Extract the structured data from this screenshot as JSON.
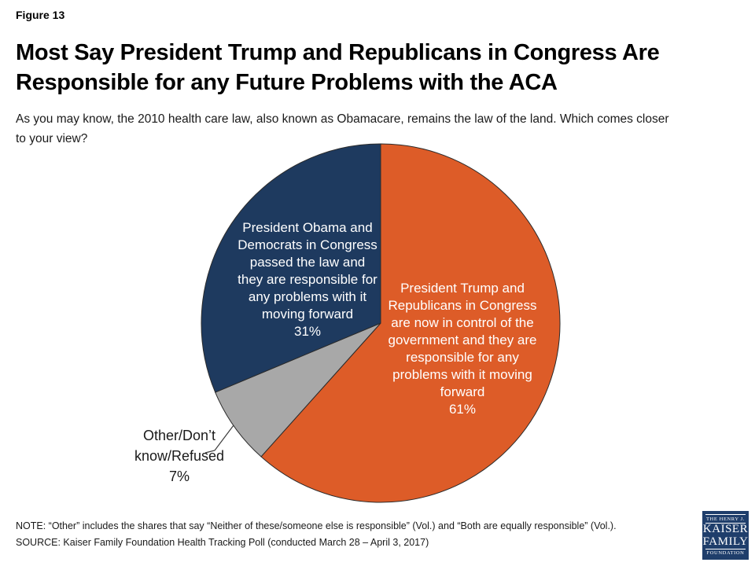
{
  "figure_label": "Figure 13",
  "title": "Most Say President Trump and Republicans in Congress Are\nResponsible for any Future Problems with the ACA",
  "subtitle": "As you may know, the 2010 health care law, also known as Obamacare, remains the law of the land. Which comes closer\nto your view?",
  "chart_data": {
    "type": "pie",
    "start_angle_deg": 0,
    "direction": "clockwise",
    "outline_color": "#2b2b2b",
    "slices": [
      {
        "label": "President Trump and Republicans in Congress are now in control of the government and they are responsible for any problems with it moving forward",
        "value": 61,
        "pct_label": "61%",
        "color": "#DD5C28",
        "text_color": "#FFFFFF",
        "display": "President Trump and\nRepublicans in Congress\nare now in control of the\ngovernment and they are\nresponsible for any\nproblems with it moving\nforward\n61%"
      },
      {
        "label": "Other/Don’t know/Refused",
        "value": 7,
        "pct_label": "7%",
        "color": "#A8A8A8",
        "text_color": "#1A1A1A",
        "display": "Other/Don’t\nknow/Refused\n7%"
      },
      {
        "label": "President Obama and Democrats in Congress passed the law and they are responsible for any problems with it moving forward",
        "value": 31,
        "pct_label": "31%",
        "color": "#1E3A5F",
        "text_color": "#FFFFFF",
        "display": "President Obama and\nDemocrats in Congress\npassed the law and\nthey are responsible for\nany problems with it\nmoving forward\n31%"
      }
    ]
  },
  "note": "NOTE: “Other” includes the shares that say “Neither of these/someone else is responsible” (Vol.) and “Both are equally responsible” (Vol.).",
  "source": "SOURCE: Kaiser Family Foundation Health Tracking Poll (conducted March 28 – April 3, 2017)",
  "logo": {
    "bg": "#1F3E6B",
    "line1": "THE HENRY J.",
    "line2": "KAISER",
    "line3": "FAMILY",
    "line4": "FOUNDATION"
  }
}
